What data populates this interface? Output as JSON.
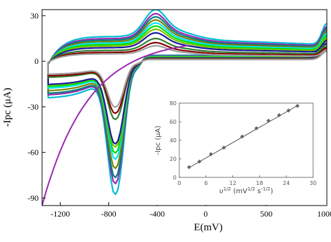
{
  "chart_data": [
    {
      "type": "line",
      "title": "",
      "xlabel": "E(mV)",
      "ylabel": "-Ipc (μA)",
      "xlim": [
        -1350,
        1000
      ],
      "ylim": [
        -95,
        34
      ],
      "x_ticks": [
        -1200,
        -800,
        -400,
        0,
        500,
        1000
      ],
      "x_tick_labels": [
        "-1200",
        "-800",
        "-400",
        "0",
        "500",
        "1000"
      ],
      "y_ticks": [
        30,
        0,
        -30,
        -60,
        -90
      ],
      "y_tick_labels": [
        "30",
        "0",
        "-30",
        "-60",
        "-90"
      ],
      "grid": false,
      "legend": "none",
      "series": [
        {
          "color": "#00bcd4",
          "peak_current": -87,
          "scale": 1.0,
          "offset": 0
        },
        {
          "color": "#9c27b0",
          "peak_current": -80,
          "scale": 0.92,
          "offset": 0
        },
        {
          "color": "#008080",
          "peak_current": -76,
          "scale": 0.86,
          "offset": 0
        },
        {
          "color": "#808000",
          "peak_current": -70,
          "scale": 0.8,
          "offset": 0
        },
        {
          "color": "#00e5ff",
          "peak_current": -64,
          "scale": 0.74,
          "offset": 0
        },
        {
          "color": "#00e000",
          "peak_current": -60,
          "scale": 0.68,
          "offset": 0
        },
        {
          "color": "#7cbf00",
          "peak_current": -56,
          "scale": 0.62,
          "offset": 0
        },
        {
          "color": "#1a1aa0",
          "peak_current": -54,
          "scale": 0.55,
          "offset": 0
        },
        {
          "color": "#2e7d32",
          "peak_current": -38,
          "scale": 0.44,
          "offset": 0
        },
        {
          "color": "#8b0000",
          "peak_current": -34,
          "scale": 0.36,
          "offset": 0
        },
        {
          "color": "#9e9e9e",
          "peak_current": -30,
          "scale": 0.3,
          "offset": 0
        }
      ],
      "extra_curve": {
        "color": "#9c27b0"
      }
    },
    {
      "type": "scatter",
      "title": "",
      "xlabel": "υ1/2 (mV1/2 s-1/2)",
      "xlabel_main": "υ",
      "xlabel_sup1": "1/2",
      "xlabel_mid": " (mV",
      "xlabel_sup2": "1/2",
      "xlabel_mid2": " s",
      "xlabel_sup3": "-1/2",
      "xlabel_end": ")",
      "ylabel": "-Ipc (μA)",
      "xlim": [
        0,
        30
      ],
      "ylim": [
        0,
        80
      ],
      "x_ticks": [
        0,
        6,
        12,
        18,
        24,
        30
      ],
      "x_tick_labels": [
        "0",
        "6",
        "12",
        "18",
        "24",
        "30"
      ],
      "y_ticks": [
        0,
        20,
        40,
        60,
        80
      ],
      "y_tick_labels": [
        "0",
        "20",
        "40",
        "60",
        "80"
      ],
      "grid": false,
      "legend": "none",
      "points": [
        {
          "x": 2.2,
          "y": 11
        },
        {
          "x": 4.5,
          "y": 17
        },
        {
          "x": 7.1,
          "y": 25
        },
        {
          "x": 10.0,
          "y": 32
        },
        {
          "x": 14.1,
          "y": 44
        },
        {
          "x": 17.3,
          "y": 53
        },
        {
          "x": 20.0,
          "y": 61
        },
        {
          "x": 22.4,
          "y": 67
        },
        {
          "x": 24.5,
          "y": 72
        },
        {
          "x": 26.5,
          "y": 77
        }
      ],
      "fit": {
        "slope": 2.75,
        "intercept": 4.5
      }
    }
  ]
}
